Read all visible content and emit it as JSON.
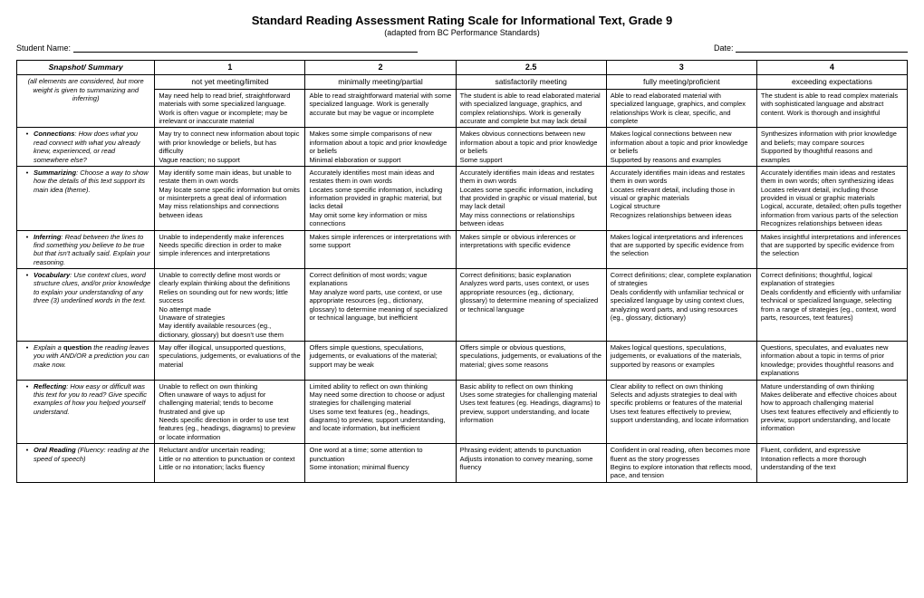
{
  "title": "Standard Reading Assessment Rating Scale for Informational Text, Grade 9",
  "subtitle": "(adapted from BC Performance Standards)",
  "studentLabel": "Student Name:",
  "dateLabel": "Date:",
  "cols": [
    {
      "num": "",
      "label": "Snapshot/ Summary",
      "sub": "(all elements are considered, but more weight is given to summarizing and inferring)"
    },
    {
      "num": "1",
      "label": "not yet meeting/limited",
      "sub": ""
    },
    {
      "num": "2",
      "label": "minimally meeting/partial",
      "sub": ""
    },
    {
      "num": "2.5",
      "label": "satisfactorily meeting",
      "sub": ""
    },
    {
      "num": "3",
      "label": "fully meeting/proficient",
      "sub": ""
    },
    {
      "num": "4",
      "label": "exceeding expectations",
      "sub": ""
    }
  ],
  "snapshot": [
    "May need help to read brief, straightforward materials with some specialized language. Work is often vague or incomplete; may be irrelevant or inaccurate material",
    "Able to read straightforward material with some specialized language. Work is generally accurate but may be vague or incomplete",
    "The student is able to read elaborated material with specialized language, graphics, and complex relationships. Work is generally accurate and complete but may lack detail",
    "Able to read elaborated material with specialized language, graphics, and complex relationships Work is clear, specific, and complete",
    "The student is able to read complex materials with sophisticated language and abstract content. Work is thorough and insightful"
  ],
  "rows": [
    {
      "lead": "Connections",
      "rest": ": How does what you read connect with what you already knew, experienced, or read somewhere else?",
      "cells": [
        "May try to connect new information about topic with prior knowledge or beliefs, but has difficulty\nVague reaction; no support",
        "Makes some simple comparisons of new information about a topic and prior knowledge or beliefs\nMinimal elaboration or support",
        "Makes obvious connections between new information about a topic and prior knowledge or beliefs\nSome support",
        "Makes logical connections between new information about a topic and prior knowledge or beliefs\nSupported by reasons and examples",
        "Synthesizes information with prior knowledge and beliefs; may compare sources\nSupported by thoughtful reasons and examples"
      ]
    },
    {
      "lead": "Summarizing",
      "rest": ": Choose a way to show how the details of this text support its main idea (theme).",
      "cells": [
        "May identify some main ideas, but unable to restate them in own words\nMay locate some specific information but omits or misinterprets a great deal of information\nMay miss relationships and connections between ideas",
        "Accurately identifies most main ideas and restates them in own words\nLocates some specific information, including information provided in graphic material, but lacks detail\nMay omit some key information or miss connections",
        "Accurately identifies main ideas and restates them in own words\nLocates some specific information, including that provided in graphic or visual material, but may lack detail\nMay miss connections or relationships between ideas",
        "Accurately identifies main ideas and restates them in own words\nLocates relevant detail, including those in visual or graphic materials\nLogical structure\nRecognizes relationships between ideas",
        "Accurately identifies main ideas and restates them in own words; often synthesizing ideas\nLocates relevant detail, including those provided in visual or graphic materials\nLogical, accurate, detailed; often pulls together information from various parts of the selection\nRecognizes relationships between ideas"
      ]
    },
    {
      "lead": "Inferring",
      "rest": ": Read between the lines to find something you believe to be true but that isn't actually said. Explain your reasoning.",
      "cells": [
        "Unable to independently make inferences\nNeeds specific direction in order to make simple inferences and interpretations",
        "Makes simple inferences or interpretations with some support",
        "Makes simple or obvious inferences or interpretations with specific evidence",
        "Makes logical interpretations and inferences that are supported by specific evidence from the selection",
        "Makes insightful interpretations and inferences that are supported by specific evidence from the selection"
      ]
    },
    {
      "lead": "Vocabulary",
      "rest": ": Use context clues, word structure clues, and/or prior knowledge to explain your understanding of any three (3) underlined words in the text.",
      "cells": [
        "Unable to correctly define most words or clearly explain thinking about the definitions\nRelies on sounding out for new words; little success\nNo attempt made\nUnaware of strategies\nMay identify available resources (eg., dictionary, glossary) but doesn't use them",
        "Correct definition of most words; vague explanations\nMay analyze word parts, use context, or use appropriate resources (eg., dictionary, glossary) to determine meaning of specialized or technical language, but inefficient",
        "Correct definitions; basic explanation\nAnalyzes word parts, uses context, or uses appropriate resources (eg., dictionary, glossary) to determine meaning of specialized or technical language",
        "Correct definitions; clear, complete explanation of strategies\nDeals confidently with unfamiliar technical or specialized language by using context clues, analyzing word parts, and using resources (eg., glossary, dictionary)",
        "Correct definitions; thoughtful, logical explanation of strategies\nDeals confidently and efficiently with unfamiliar technical or specialized language, selecting from a range of strategies (eg., context, word parts, resources, text features)"
      ]
    },
    {
      "lead": "",
      "rest": "Explain a <b>question</b> the reading leaves you with AND/OR a prediction you can make now.",
      "cells": [
        "May offer illogical, unsupported questions, speculations, judgements, or evaluations of the material",
        "Offers simple questions, speculations, judgements, or evaluations of the material; support may be weak",
        "Offers simple or obvious questions, speculations, judgements, or evaluations of the material; gives some reasons",
        "Makes logical questions, speculations, judgements, or evaluations of the materials, supported by reasons or examples",
        "Questions, speculates, and evaluates new information about a topic in terms of prior knowledge; provides thoughtful reasons and explanations"
      ]
    },
    {
      "lead": "Reflecting",
      "rest": ": How easy or difficult was this text for you to read? Give specific examples of how you helped yourself understand.",
      "cells": [
        "Unable to reflect on own thinking\nOften unaware of ways to adjust for challenging material; tends to become frustrated and give up\nNeeds specific direction in order to use text features (eg., headings, diagrams) to preview or locate information",
        "Limited ability to reflect on own thinking\nMay need some direction to choose or adjust strategies for challenging material\nUses some text features (eg., headings, diagrams) to preview, support understanding, and locate information, but inefficient",
        "Basic ability to reflect on own thinking\nUses some strategies for challenging material\nUses text features (eg. Headings, diagrams) to preview, support understanding, and locate information",
        "Clear ability to reflect on own thinking\nSelects and adjusts strategies to deal with specific problems or features of the material\nUses text features effectively to preview, support understanding, and locate information",
        "Mature understanding of own thinking\nMakes deliberate and effective choices about how to approach challenging material\nUses text features effectively and efficiently to preview, support understanding, and locate information"
      ]
    },
    {
      "lead": "Oral Reading",
      "rest": " (Fluency: reading at the speed of speech)",
      "cells": [
        "Reluctant and/or uncertain reading;\nLittle or no attention to punctuation or context\nLittle or no intonation; lacks fluency",
        "One word at a time; some attention to punctuation\nSome intonation; minimal fluency",
        "Phrasing evident; attends to punctuation\nAdjusts intonation to convey meaning, some fluency",
        "Confident in oral reading, often becomes more fluent as the story progresses\nBegins to explore intonation that reflects mood, pace, and tension",
        "Fluent, confident, and expressive\nIntonation reflects a more thorough understanding of the text"
      ]
    }
  ]
}
